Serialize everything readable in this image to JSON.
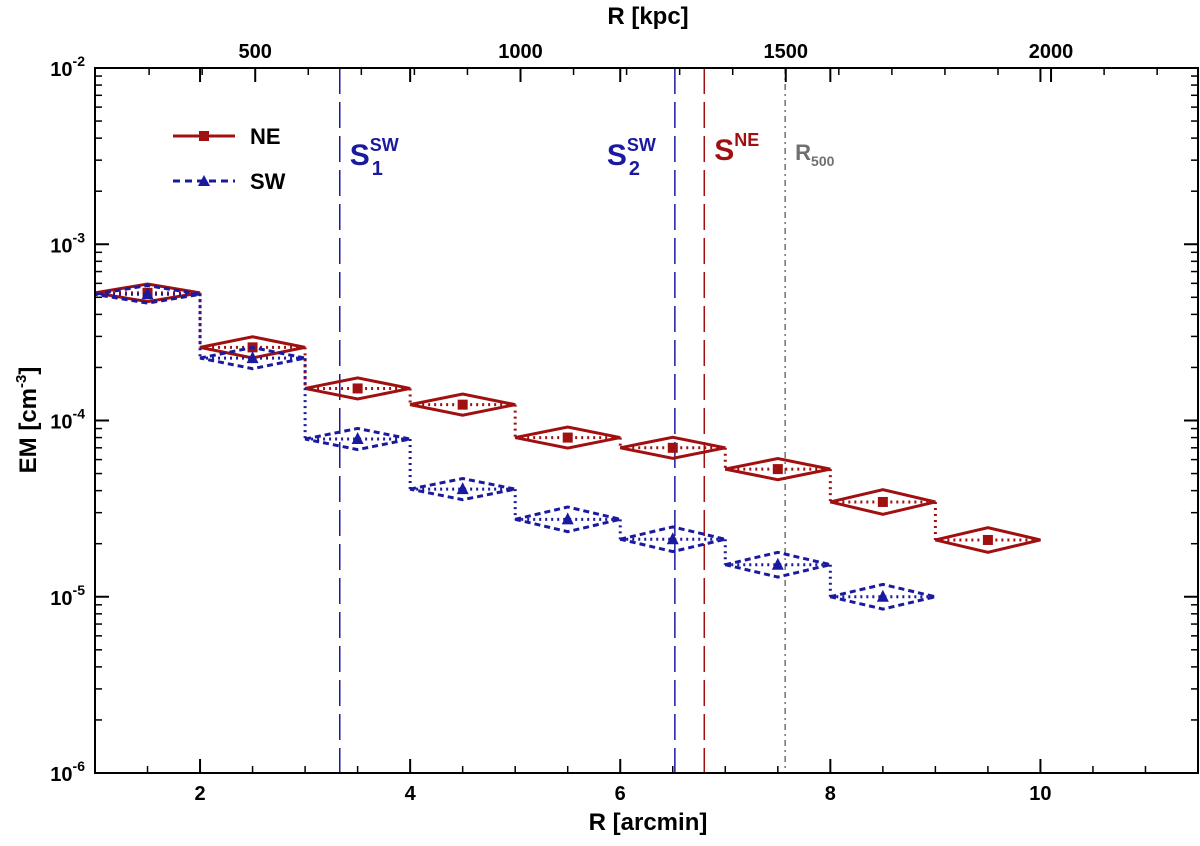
{
  "chart_data": {
    "type": "step",
    "xlabel": "R [arcmin]",
    "ylabel_main": "EM [cm",
    "ylabel_exp": "-3",
    "ylabel_close": "]",
    "top_xlabel": "R [kpc]",
    "xlim": [
      1,
      11.5
    ],
    "ylim": [
      1e-06,
      0.01
    ],
    "yscale": "log",
    "x_ticks": [
      2,
      4,
      6,
      8,
      10
    ],
    "x_tick_labels": [
      "2",
      "4",
      "6",
      "8",
      "10"
    ],
    "top_ticks_kpc": [
      500,
      1000,
      1500,
      2000
    ],
    "top_tick_labels": [
      "500",
      "1000",
      "1500",
      "2000"
    ],
    "kpc_per_arcmin": 198,
    "y_tick_labels": [
      {
        "base": "10",
        "exp": "-6",
        "value": 1e-06
      },
      {
        "base": "10",
        "exp": "-5",
        "value": 1e-05
      },
      {
        "base": "10",
        "exp": "-4",
        "value": 0.0001
      },
      {
        "base": "10",
        "exp": "-3",
        "value": 0.001
      },
      {
        "base": "10",
        "exp": "-2",
        "value": 0.01
      }
    ],
    "legend_position": "top-left",
    "series": [
      {
        "name": "NE",
        "color": "#a01010",
        "marker": "square",
        "bins": [
          [
            1,
            2
          ],
          [
            2,
            3
          ],
          [
            3,
            4
          ],
          [
            4,
            5
          ],
          [
            5,
            6
          ],
          [
            6,
            7
          ],
          [
            7,
            8
          ],
          [
            8,
            9
          ],
          [
            9,
            10
          ]
        ],
        "values": [
          0.00053,
          0.00026,
          0.000152,
          0.000123,
          8e-05,
          7e-05,
          5.3e-05,
          3.45e-05,
          2.1e-05
        ],
        "errors": [
          0.05,
          0.06,
          0.06,
          0.06,
          0.06,
          0.06,
          0.06,
          0.07,
          0.07
        ]
      },
      {
        "name": "SW",
        "color": "#1a1aa0",
        "marker": "triangle",
        "bins": [
          [
            1,
            2
          ],
          [
            2,
            3
          ],
          [
            3,
            4
          ],
          [
            4,
            5
          ],
          [
            5,
            6
          ],
          [
            6,
            7
          ],
          [
            7,
            8
          ],
          [
            8,
            9
          ]
        ],
        "values": [
          0.00052,
          0.000226,
          7.85e-05,
          4.08e-05,
          2.75e-05,
          2.12e-05,
          1.52e-05,
          1e-05
        ],
        "errors": [
          0.05,
          0.06,
          0.06,
          0.06,
          0.07,
          0.07,
          0.07,
          0.07
        ]
      }
    ],
    "vlines": [
      {
        "x": 3.33,
        "color": "#1a1aa0",
        "style": "long-dash",
        "label_main": "S",
        "label_sup": "SW",
        "label_sub": "1"
      },
      {
        "x": 6.52,
        "color": "#1a1aa0",
        "style": "long-dash",
        "label_main": "S",
        "label_sup": "SW",
        "label_sub": "2"
      },
      {
        "x": 6.8,
        "color": "#a01010",
        "style": "long-dash",
        "label_main": "S",
        "label_sup": "NE",
        "label_sub": ""
      },
      {
        "x": 7.57,
        "color": "#707070",
        "style": "dash-dot",
        "label_main": "R",
        "label_sup": "",
        "label_sub": "500"
      }
    ]
  }
}
